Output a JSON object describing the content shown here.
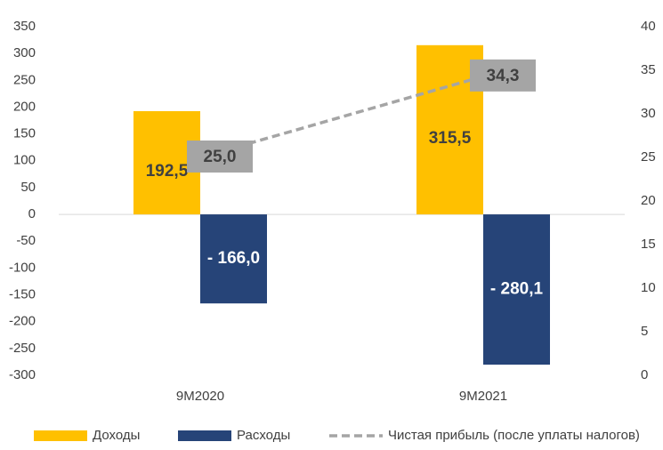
{
  "chart_data": {
    "type": "bar_line",
    "categories": [
      "9M2020",
      "9M2021"
    ],
    "series": [
      {
        "name": "Доходы",
        "color": "#FFC000",
        "values": [
          192.5,
          315.5
        ],
        "value_labels": [
          "192,5",
          "315,5"
        ]
      },
      {
        "name": "Расходы",
        "color": "#264478",
        "values": [
          -166.0,
          -280.1
        ],
        "value_labels": [
          "- 166,0",
          "- 280,1"
        ]
      },
      {
        "name": "Чистая прибыль (после уплаты налогов)",
        "color": "#A5A5A5",
        "axis": "y2",
        "type": "line",
        "dashed": true,
        "values": [
          25.0,
          34.3
        ],
        "value_labels": [
          "25,0",
          "34,3"
        ]
      }
    ],
    "ylim": [
      -300,
      350
    ],
    "yticks": [
      -300,
      -250,
      -200,
      -150,
      -100,
      -50,
      0,
      50,
      100,
      150,
      200,
      250,
      300,
      350
    ],
    "y2lim": [
      0,
      40
    ],
    "y2ticks": [
      0,
      5,
      10,
      15,
      20,
      25,
      30,
      35,
      40
    ],
    "legend": "bottom"
  }
}
